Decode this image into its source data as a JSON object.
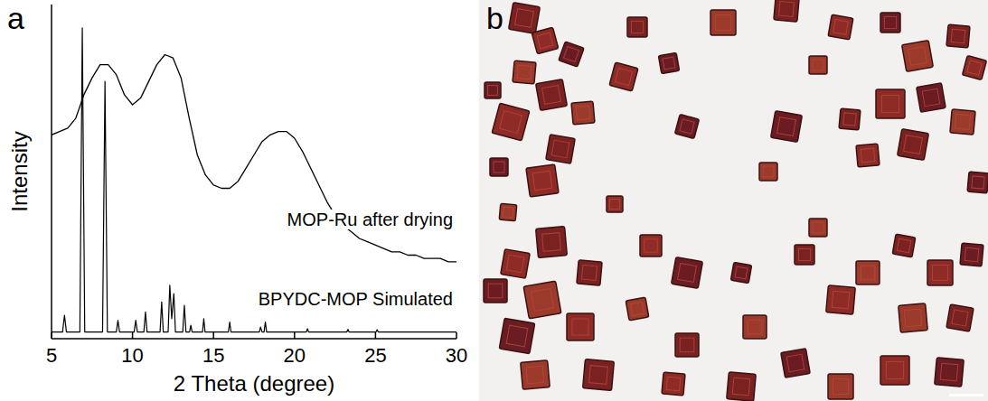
{
  "chart_data": {
    "type": "line",
    "x_label": "2 Theta (degree)",
    "y_label": "Intensity",
    "xlim": [
      5,
      30
    ],
    "xticks": [
      5,
      10,
      15,
      20,
      25,
      30
    ],
    "ylim": [
      0,
      100
    ],
    "yticks": [],
    "tick_labels": "x",
    "grid": false,
    "series": [
      {
        "name": "MOP-Ru after drying",
        "color": "#000000",
        "x": [
          5,
          5.5,
          6,
          6.5,
          7,
          7.5,
          8,
          8.5,
          9,
          9.5,
          10,
          10.5,
          11,
          11.5,
          12,
          12.5,
          13,
          13.5,
          14,
          14.5,
          15,
          15.5,
          16,
          16.5,
          17,
          17.5,
          18,
          18.5,
          19,
          19.5,
          20,
          20.5,
          21,
          21.5,
          22,
          22.5,
          23,
          23.5,
          24,
          24.5,
          25,
          25.5,
          26,
          26.5,
          27,
          27.5,
          28,
          28.5,
          29,
          29.5,
          30
        ],
        "values": [
          61,
          62,
          63,
          66,
          73,
          78,
          82,
          82,
          79,
          73,
          70,
          72,
          77,
          82,
          85,
          84,
          78,
          66,
          55,
          49,
          46,
          45,
          45,
          47,
          51,
          55,
          59,
          61,
          62,
          62,
          60,
          56,
          51,
          46,
          41,
          37,
          34,
          32,
          30,
          29,
          28,
          27,
          26,
          26,
          25,
          25,
          24,
          24,
          24,
          23,
          23
        ]
      },
      {
        "name": "BPYDC-MOP Simulated",
        "color": "#000000",
        "x": [
          5,
          5.68,
          5.8,
          5.92,
          6.75,
          6.9,
          7.05,
          8.15,
          8.3,
          8.45,
          9.0,
          9.1,
          9.2,
          10.1,
          10.2,
          10.3,
          10.7,
          10.8,
          10.9,
          11.7,
          11.8,
          11.9,
          12.2,
          12.3,
          12.42,
          12.55,
          12.65,
          13.1,
          13.2,
          13.3,
          13.52,
          13.6,
          13.68,
          14.32,
          14.4,
          14.48,
          15.92,
          16.0,
          16.08,
          17.83,
          17.9,
          18.0,
          18.12,
          18.2,
          18.28,
          20.73,
          20.8,
          20.87,
          23.23,
          23.3,
          23.37,
          25.03,
          25.1,
          25.17,
          30
        ],
        "values": [
          2,
          2,
          7,
          2,
          2,
          93,
          2,
          2,
          77,
          2,
          2,
          5.5,
          2,
          2,
          5.5,
          2,
          2,
          8,
          2,
          2,
          11,
          2,
          2,
          16,
          6,
          13.5,
          2,
          2,
          10,
          2,
          2,
          4,
          2,
          2,
          6,
          2,
          2,
          5,
          2,
          2,
          3.5,
          2,
          2,
          5,
          2,
          2,
          3,
          2,
          2,
          2.8,
          2,
          2,
          2.7,
          2,
          2
        ]
      }
    ]
  },
  "panel_labels": [
    "a",
    "b"
  ]
}
